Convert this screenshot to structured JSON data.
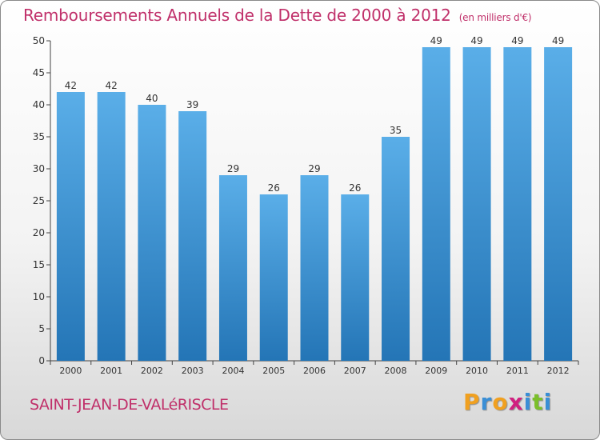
{
  "chart_data": {
    "type": "bar",
    "title": "Remboursements Annuels de la Dette de 2000 à 2012",
    "subtitle": "(en milliers d'€)",
    "categories": [
      "2000",
      "2001",
      "2002",
      "2003",
      "2004",
      "2005",
      "2006",
      "2007",
      "2008",
      "2009",
      "2010",
      "2011",
      "2012"
    ],
    "values": [
      42,
      42,
      40,
      39,
      29,
      26,
      29,
      26,
      35,
      49,
      49,
      49,
      49
    ],
    "value_labels": [
      "42",
      "42",
      "40",
      "39",
      "29",
      "26",
      "29",
      "26",
      "35",
      "49",
      "49",
      "49",
      "49"
    ],
    "ylim": [
      0,
      50
    ],
    "yticks": [
      0,
      5,
      10,
      15,
      20,
      25,
      30,
      35,
      40,
      45,
      50
    ],
    "ytick_labels": [
      "0",
      "5",
      "10",
      "15",
      "20",
      "25",
      "30",
      "35",
      "40",
      "45",
      "50"
    ],
    "xlabel": "",
    "ylabel": "",
    "grid": false,
    "bar_color_top": "#5aaee8",
    "bar_color_bottom": "#2475b6"
  },
  "footer": {
    "commune": "SAINT-JEAN-DE-VALéRISCLE",
    "logo": {
      "text": "Proxiti",
      "letters": [
        "P",
        "r",
        "o",
        "x",
        "i",
        "t",
        "i"
      ],
      "colors": [
        "#f0a020",
        "#3a8fd6",
        "#f0a020",
        "#d02080",
        "#3a8fd6",
        "#7bbf2a",
        "#3a8fd6"
      ]
    }
  },
  "colors": {
    "accent": "#c0306a",
    "axis": "#444444",
    "text": "#333333"
  }
}
